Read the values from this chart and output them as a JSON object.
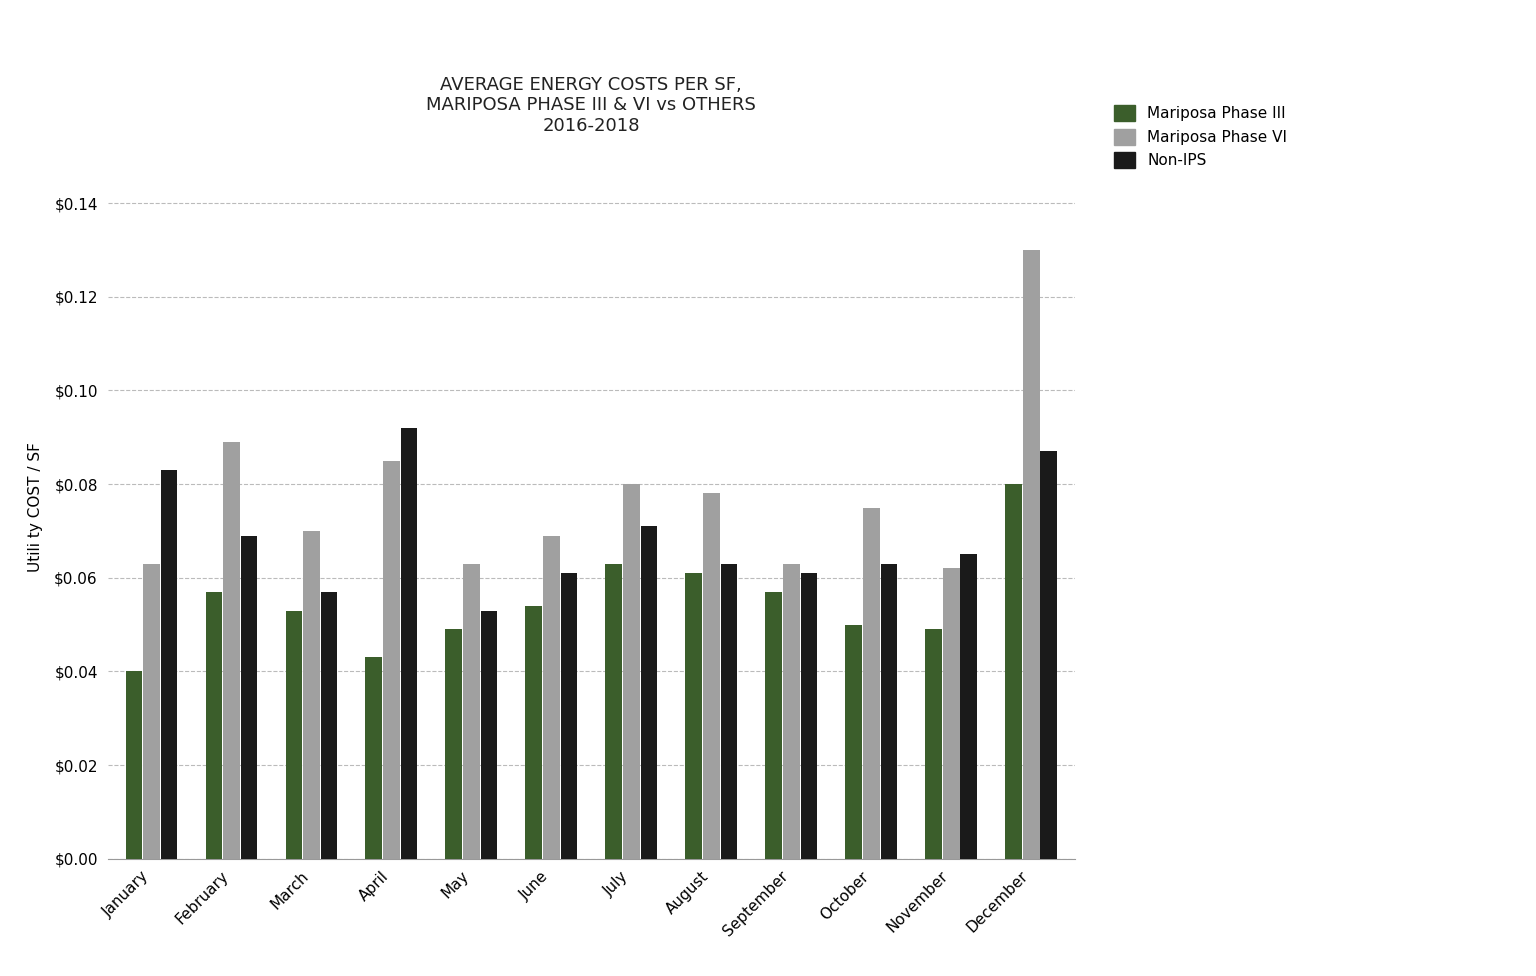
{
  "title": "AVERAGE ENERGY COSTS PER SF,\nMARIPOSA PHASE III & VI vs OTHERS\n2016-2018",
  "ylabel": "Utili ty COST / SF",
  "months": [
    "January",
    "February",
    "March",
    "April",
    "May",
    "June",
    "July",
    "August",
    "September",
    "October",
    "November",
    "December"
  ],
  "series": {
    "Mariposa Phase III": {
      "color": "#3b5e2b",
      "values": [
        0.04,
        0.057,
        0.053,
        0.043,
        0.049,
        0.054,
        0.063,
        0.061,
        0.057,
        0.05,
        0.049,
        0.08
      ]
    },
    "Mariposa Phase VI": {
      "color": "#a0a0a0",
      "values": [
        0.063,
        0.089,
        0.07,
        0.085,
        0.063,
        0.069,
        0.08,
        0.078,
        0.063,
        0.075,
        0.062,
        0.13
      ]
    },
    "Non-IPS": {
      "color": "#1a1a1a",
      "values": [
        0.083,
        0.069,
        0.057,
        0.092,
        0.053,
        0.061,
        0.071,
        0.063,
        0.061,
        0.063,
        0.065,
        0.087
      ]
    }
  },
  "ylim": [
    0,
    0.15
  ],
  "yticks": [
    0.0,
    0.02,
    0.04,
    0.06,
    0.08,
    0.1,
    0.12,
    0.14
  ],
  "background_color": "#ffffff",
  "grid_color": "#bbbbbb",
  "bar_width": 0.22,
  "title_fontsize": 13,
  "tick_fontsize": 11,
  "legend_fontsize": 11,
  "ylabel_fontsize": 11
}
